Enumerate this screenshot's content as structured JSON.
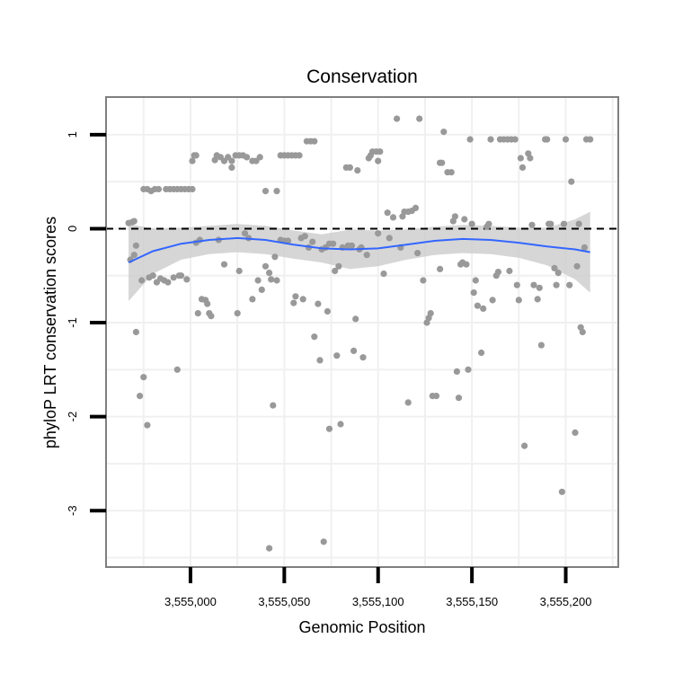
{
  "chart_data": {
    "type": "scatter",
    "title": "Conservation",
    "xlabel": "Genomic Position",
    "ylabel": "phyloP LRT conservation scores",
    "xlim": [
      3554955,
      3555228
    ],
    "ylim": [
      -3.6,
      1.4
    ],
    "x_ticks": [
      3555000,
      3555050,
      3555100,
      3555150,
      3555200
    ],
    "x_tick_labels": [
      "3,555,000",
      "3,555,050",
      "3,555,100",
      "3,555,150",
      "3,555,200"
    ],
    "y_ticks": [
      1,
      0,
      -1,
      -2,
      -3
    ],
    "y_tick_labels": [
      "1",
      "0",
      "-1",
      "-2",
      "-3"
    ],
    "grid": true,
    "reference_line": {
      "y": 0,
      "style": "dashed"
    },
    "colors": {
      "points": "#999999",
      "smooth_line": "#3366ff",
      "ribbon": "#cccccc",
      "grid": "#f0f0f0",
      "panel_border": "#7f7f7f"
    },
    "smooth": {
      "method": "loess",
      "x": [
        3554967,
        3554980,
        3554995,
        3555010,
        3555025,
        3555040,
        3555055,
        3555070,
        3555085,
        3555100,
        3555115,
        3555130,
        3555145,
        3555160,
        3555175,
        3555190,
        3555205,
        3555213
      ],
      "y": [
        -0.36,
        -0.24,
        -0.16,
        -0.12,
        -0.1,
        -0.12,
        -0.17,
        -0.21,
        -0.22,
        -0.21,
        -0.17,
        -0.13,
        -0.11,
        -0.12,
        -0.15,
        -0.19,
        -0.22,
        -0.25
      ],
      "lower": [
        -0.77,
        -0.48,
        -0.33,
        -0.27,
        -0.25,
        -0.27,
        -0.32,
        -0.36,
        -0.43,
        -0.4,
        -0.33,
        -0.28,
        -0.26,
        -0.27,
        -0.31,
        -0.39,
        -0.54,
        -0.68
      ],
      "upper": [
        0.05,
        0.0,
        0.01,
        0.03,
        0.05,
        0.03,
        -0.02,
        -0.06,
        -0.01,
        -0.02,
        -0.01,
        0.02,
        0.04,
        0.03,
        0.01,
        0.01,
        0.1,
        0.18
      ]
    },
    "points": [
      [
        3554967,
        0.06
      ],
      [
        3554969,
        0.07
      ],
      [
        3554970,
        0.08
      ],
      [
        3554968,
        -0.33
      ],
      [
        3554970,
        -0.28
      ],
      [
        3554971,
        -0.18
      ],
      [
        3554971,
        -1.1
      ],
      [
        3554974,
        -0.55
      ],
      [
        3554973,
        -1.78
      ],
      [
        3554975,
        -1.58
      ],
      [
        3554977,
        -2.09
      ],
      [
        3554975,
        0.42
      ],
      [
        3554977,
        0.42
      ],
      [
        3554979,
        0.4
      ],
      [
        3554981,
        0.42
      ],
      [
        3554983,
        0.42
      ],
      [
        3554978,
        -0.52
      ],
      [
        3554980,
        -0.5
      ],
      [
        3554982,
        -0.57
      ],
      [
        3554984,
        -0.53
      ],
      [
        3554986,
        -0.55
      ],
      [
        3554988,
        -0.57
      ],
      [
        3554991,
        -0.52
      ],
      [
        3554994,
        -0.5
      ],
      [
        3554998,
        -0.54
      ],
      [
        3554987,
        0.42
      ],
      [
        3554989,
        0.42
      ],
      [
        3554991,
        0.42
      ],
      [
        3554993,
        0.42
      ],
      [
        3554995,
        0.42
      ],
      [
        3554997,
        0.42
      ],
      [
        3554999,
        0.42
      ],
      [
        3555001,
        0.42
      ],
      [
        3554993,
        -1.5
      ],
      [
        3554995,
        -0.5
      ],
      [
        3555001,
        0.72
      ],
      [
        3555002,
        0.78
      ],
      [
        3555003,
        0.78
      ],
      [
        3555003,
        -0.15
      ],
      [
        3555005,
        -0.12
      ],
      [
        3555004,
        -0.9
      ],
      [
        3555006,
        -0.75
      ],
      [
        3555008,
        -0.76
      ],
      [
        3555009,
        -0.8
      ],
      [
        3555010,
        -0.9
      ],
      [
        3555011,
        -0.93
      ],
      [
        3555013,
        0.73
      ],
      [
        3555014,
        0.78
      ],
      [
        3555016,
        0.76
      ],
      [
        3555018,
        0.72
      ],
      [
        3555020,
        0.76
      ],
      [
        3555022,
        0.72
      ],
      [
        3555022,
        0.65
      ],
      [
        3555024,
        0.78
      ],
      [
        3555026,
        0.78
      ],
      [
        3555028,
        0.78
      ],
      [
        3555030,
        0.76
      ],
      [
        3555015,
        -0.12
      ],
      [
        3555018,
        -0.38
      ],
      [
        3555025,
        -0.9
      ],
      [
        3555026,
        -0.45
      ],
      [
        3555029,
        -0.05
      ],
      [
        3555031,
        -0.1
      ],
      [
        3555033,
        0.72
      ],
      [
        3555035,
        0.72
      ],
      [
        3555037,
        0.76
      ],
      [
        3555033,
        -0.75
      ],
      [
        3555036,
        -0.55
      ],
      [
        3555040,
        0.4
      ],
      [
        3555038,
        -0.65
      ],
      [
        3555040,
        -0.4
      ],
      [
        3555042,
        -0.47
      ],
      [
        3555043,
        -0.54
      ],
      [
        3555044,
        -1.88
      ],
      [
        3555046,
        0.4
      ],
      [
        3555045,
        -0.3
      ],
      [
        3555046,
        -0.55
      ],
      [
        3555042,
        -3.4
      ],
      [
        3555048,
        -0.12
      ],
      [
        3555048,
        0.78
      ],
      [
        3555050,
        0.78
      ],
      [
        3555052,
        0.78
      ],
      [
        3555054,
        0.78
      ],
      [
        3555056,
        0.78
      ],
      [
        3555058,
        0.78
      ],
      [
        3555050,
        -0.13
      ],
      [
        3555052,
        -0.13
      ],
      [
        3555055,
        -0.79
      ],
      [
        3555056,
        -0.72
      ],
      [
        3555059,
        -0.1
      ],
      [
        3555061,
        -0.08
      ],
      [
        3555060,
        -0.75
      ],
      [
        3555062,
        0.93
      ],
      [
        3555064,
        0.93
      ],
      [
        3555066,
        0.93
      ],
      [
        3555063,
        -0.2
      ],
      [
        3555065,
        -0.14
      ],
      [
        3555066,
        -1.15
      ],
      [
        3555068,
        -0.8
      ],
      [
        3555069,
        -1.4
      ],
      [
        3555070,
        -0.22
      ],
      [
        3555071,
        -3.33
      ],
      [
        3555073,
        -0.88
      ],
      [
        3555074,
        -2.13
      ],
      [
        3555072,
        -0.2
      ],
      [
        3555074,
        -0.16
      ],
      [
        3555076,
        -0.16
      ],
      [
        3555077,
        -0.45
      ],
      [
        3555078,
        -1.35
      ],
      [
        3555079,
        -0.4
      ],
      [
        3555080,
        -2.08
      ],
      [
        3555081,
        -0.2
      ],
      [
        3555083,
        0.65
      ],
      [
        3555085,
        0.65
      ],
      [
        3555084,
        -0.18
      ],
      [
        3555086,
        -0.18
      ],
      [
        3555087,
        -1.3
      ],
      [
        3555089,
        0.62
      ],
      [
        3555088,
        -0.96
      ],
      [
        3555090,
        -0.22
      ],
      [
        3555092,
        -1.37
      ],
      [
        3555091,
        -0.2
      ],
      [
        3555094,
        -0.28
      ],
      [
        3555095,
        0.75
      ],
      [
        3555096,
        0.78
      ],
      [
        3555097,
        0.82
      ],
      [
        3555099,
        0.82
      ],
      [
        3555101,
        0.82
      ],
      [
        3555100,
        0.72
      ],
      [
        3555100,
        -0.05
      ],
      [
        3555103,
        -0.48
      ],
      [
        3555105,
        0.17
      ],
      [
        3555106,
        -0.1
      ],
      [
        3555108,
        0.12
      ],
      [
        3555110,
        1.17
      ],
      [
        3555112,
        -0.2
      ],
      [
        3555113,
        0.13
      ],
      [
        3555114,
        0.18
      ],
      [
        3555116,
        0.18
      ],
      [
        3555118,
        0.19
      ],
      [
        3555120,
        0.22
      ],
      [
        3555116,
        -1.85
      ],
      [
        3555122,
        1.17
      ],
      [
        3555121,
        -0.26
      ],
      [
        3555124,
        -0.55
      ],
      [
        3555126,
        -1.0
      ],
      [
        3555127,
        -0.95
      ],
      [
        3555128,
        -0.9
      ],
      [
        3555129,
        -1.78
      ],
      [
        3555131,
        -1.78
      ],
      [
        3555133,
        0.7
      ],
      [
        3555134,
        0.7
      ],
      [
        3555133,
        -0.43
      ],
      [
        3555135,
        1.03
      ],
      [
        3555137,
        0.6
      ],
      [
        3555139,
        0.6
      ],
      [
        3555140,
        0.08
      ],
      [
        3555141,
        0.13
      ],
      [
        3555142,
        -1.52
      ],
      [
        3555143,
        -1.8
      ],
      [
        3555144,
        -0.38
      ],
      [
        3555145,
        -0.36
      ],
      [
        3555146,
        0.1
      ],
      [
        3555147,
        -0.38
      ],
      [
        3555148,
        -1.5
      ],
      [
        3555149,
        0.95
      ],
      [
        3555150,
        0.05
      ],
      [
        3555151,
        -0.68
      ],
      [
        3555152,
        -0.55
      ],
      [
        3555153,
        -0.82
      ],
      [
        3555155,
        -1.32
      ],
      [
        3555156,
        -0.85
      ],
      [
        3555158,
        0.02
      ],
      [
        3555159,
        0.05
      ],
      [
        3555160,
        0.95
      ],
      [
        3555161,
        -0.76
      ],
      [
        3555163,
        -0.5
      ],
      [
        3555164,
        -0.46
      ],
      [
        3555165,
        0.95
      ],
      [
        3555167,
        0.95
      ],
      [
        3555169,
        0.95
      ],
      [
        3555171,
        0.95
      ],
      [
        3555173,
        0.95
      ],
      [
        3555170,
        -0.45
      ],
      [
        3555174,
        -0.6
      ],
      [
        3555175,
        -0.76
      ],
      [
        3555176,
        0.75
      ],
      [
        3555177,
        0.65
      ],
      [
        3555178,
        -2.31
      ],
      [
        3555180,
        0.8
      ],
      [
        3555181,
        0.75
      ],
      [
        3555182,
        0.04
      ],
      [
        3555183,
        -0.6
      ],
      [
        3555185,
        -0.75
      ],
      [
        3555186,
        -0.63
      ],
      [
        3555187,
        -1.24
      ],
      [
        3555189,
        0.95
      ],
      [
        3555190,
        0.95
      ],
      [
        3555191,
        0.05
      ],
      [
        3555192,
        0.05
      ],
      [
        3555194,
        -0.42
      ],
      [
        3555195,
        -0.6
      ],
      [
        3555196,
        -0.47
      ],
      [
        3555198,
        -2.8
      ],
      [
        3555199,
        0.05
      ],
      [
        3555200,
        0.95
      ],
      [
        3555202,
        -0.6
      ],
      [
        3555203,
        0.5
      ],
      [
        3555205,
        -2.17
      ],
      [
        3555206,
        -0.4
      ],
      [
        3555207,
        0.05
      ],
      [
        3555208,
        -1.05
      ],
      [
        3555209,
        -1.1
      ],
      [
        3555210,
        -0.2
      ],
      [
        3555211,
        0.95
      ],
      [
        3555213,
        0.95
      ]
    ]
  }
}
